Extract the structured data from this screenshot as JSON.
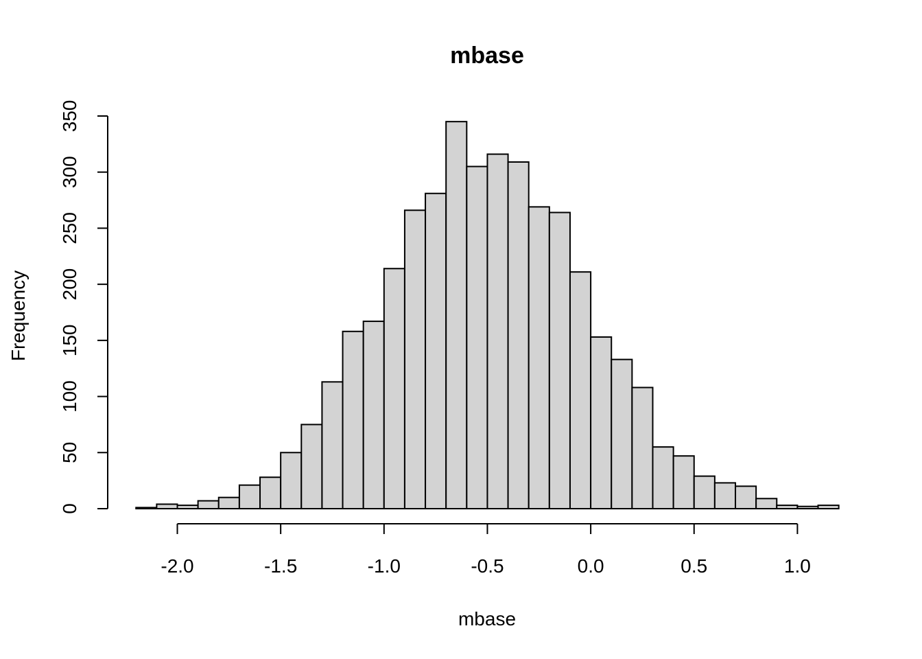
{
  "chart_data": {
    "type": "bar",
    "title": "mbase",
    "xlabel": "mbase",
    "ylabel": "Frequency",
    "bin_width": 0.1,
    "bin_starts": [
      -2.2,
      -2.1,
      -2.0,
      -1.9,
      -1.8,
      -1.7,
      -1.6,
      -1.5,
      -1.4,
      -1.3,
      -1.2,
      -1.1,
      -1.0,
      -0.9,
      -0.8,
      -0.7,
      -0.6,
      -0.5,
      -0.4,
      -0.3,
      -0.2,
      -0.1,
      0.0,
      0.1,
      0.2,
      0.3,
      0.4,
      0.5,
      0.6,
      0.7,
      0.8,
      0.9,
      1.0,
      1.1
    ],
    "values": [
      1,
      4,
      3,
      7,
      10,
      21,
      28,
      50,
      75,
      113,
      158,
      167,
      214,
      266,
      281,
      345,
      305,
      316,
      309,
      269,
      264,
      211,
      153,
      133,
      108,
      55,
      47,
      29,
      23,
      20,
      9,
      3,
      2,
      3
    ],
    "x_ticks": [
      -2.0,
      -1.5,
      -1.0,
      -0.5,
      0.0,
      0.5,
      1.0
    ],
    "x_tick_labels": [
      "-2.0",
      "-1.5",
      "-1.0",
      "-0.5",
      "0.0",
      "0.5",
      "1.0"
    ],
    "y_ticks": [
      0,
      50,
      100,
      150,
      200,
      250,
      300,
      350
    ],
    "y_tick_labels": [
      "0",
      "50",
      "100",
      "150",
      "200",
      "250",
      "300",
      "350"
    ],
    "xlim": [
      -2.2,
      1.2
    ],
    "ylim": [
      0,
      350
    ],
    "bar_fill": "#d3d3d3",
    "bar_stroke": "#000000",
    "grid": false,
    "legend": "none"
  }
}
